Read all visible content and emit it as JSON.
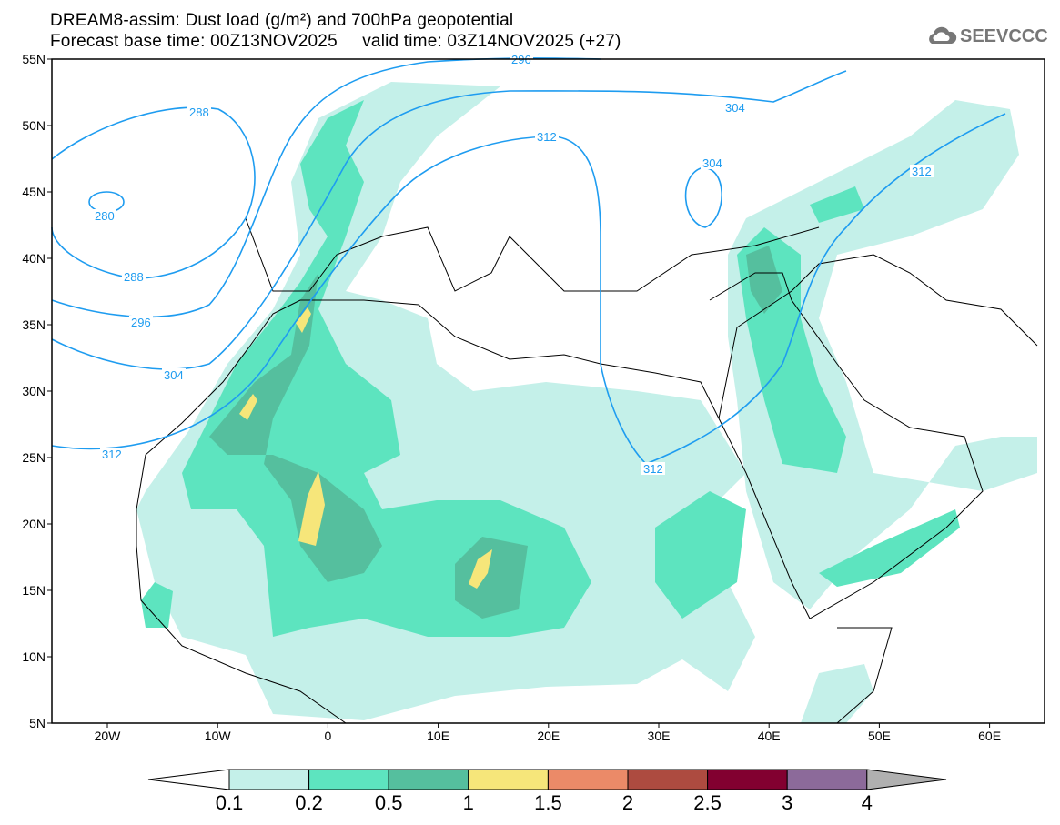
{
  "title": {
    "line1": "DREAM8-assim: Dust load (g/m²) and 700hPa geopotential",
    "line2": "Forecast base time: 00Z13NOV2025     valid time: 03Z14NOV2025 (+27)"
  },
  "logo": {
    "text": "SEEVCCC"
  },
  "axes": {
    "lat_labels": [
      "55N",
      "50N",
      "45N",
      "40N",
      "35N",
      "30N",
      "25N",
      "20N",
      "15N",
      "10N",
      "5N"
    ],
    "lon_labels": [
      "20W",
      "10W",
      "0",
      "10E",
      "20E",
      "30E",
      "40E",
      "50E",
      "60E"
    ]
  },
  "contour_labels": {
    "c296": "296",
    "c288a": "288",
    "c280": "280",
    "c288b": "288",
    "c296b": "296",
    "c304a": "304",
    "c312a": "312",
    "c312b": "312",
    "c304b": "304",
    "c304c": "304",
    "c312c": "312",
    "c312d": "312"
  },
  "colorbar": {
    "labels": [
      "0.1",
      "0.2",
      "0.5",
      "1",
      "1.5",
      "2",
      "2.5",
      "3",
      "4"
    ],
    "colors": [
      "#c4f0e9",
      "#5de4bf",
      "#55bf9e",
      "#f6e67a",
      "#eb8a68",
      "#ad4b40",
      "#820030",
      "#8c6a9a"
    ],
    "under": "#ffffff",
    "over": "#b0b0b0"
  }
}
